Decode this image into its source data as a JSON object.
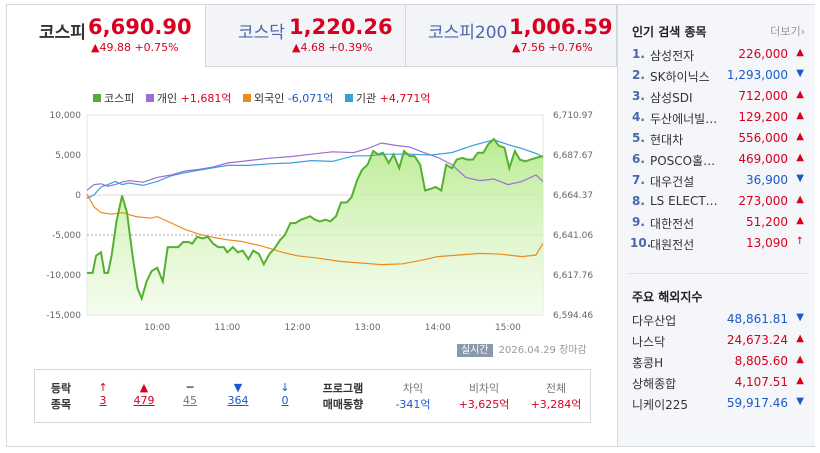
{
  "tabs": [
    {
      "name": "코스피",
      "value": "6,690.90",
      "change": "▲49.88 +0.75%",
      "active": true
    },
    {
      "name": "코스닥",
      "value": "1,220.26",
      "change": "▲4.68 +0.39%",
      "active": false
    },
    {
      "name": "코스피200",
      "value": "1,006.59",
      "change": "▲7.56 +0.76%",
      "active": false
    }
  ],
  "legend": [
    {
      "label": "코스피",
      "value": "",
      "color": "#55b030"
    },
    {
      "label": "개인",
      "value": "+1,681억",
      "color": "#9b6fd0"
    },
    {
      "label": "외국인",
      "value": "-6,071억",
      "color": "#ef8a1c"
    },
    {
      "label": "기관",
      "value": "+4,771억",
      "color": "#3b9ee0"
    }
  ],
  "chart_data": {
    "type": "line",
    "left_axis_ticks": [
      "10,000",
      "5,000",
      "0",
      "-5,000",
      "-10,000",
      "-15,000"
    ],
    "right_axis_ticks": [
      "6,710.97",
      "6,687.67",
      "6,664.37",
      "6,641.06",
      "6,617.76",
      "6,594.46"
    ],
    "x_ticks": [
      "10:00",
      "11:00",
      "12:00",
      "13:00",
      "14:00",
      "15:00"
    ],
    "ylim_left": [
      -15000,
      10000
    ],
    "ylim_right": [
      6594.46,
      6710.97
    ],
    "xlim": [
      9.0,
      15.5
    ],
    "series": [
      {
        "name": "코스피",
        "axis": "right",
        "color": "#55b030",
        "x": [
          9.0,
          9.08,
          9.13,
          9.2,
          9.25,
          9.3,
          9.35,
          9.42,
          9.5,
          9.57,
          9.65,
          9.72,
          9.78,
          9.85,
          9.92,
          10.0,
          10.08,
          10.15,
          10.22,
          10.3,
          10.37,
          10.45,
          10.5,
          10.57,
          10.65,
          10.72,
          10.8,
          10.87,
          10.95,
          11.0,
          11.08,
          11.15,
          11.22,
          11.3,
          11.37,
          11.45,
          11.52,
          11.6,
          11.67,
          11.75,
          11.82,
          11.9,
          11.97,
          12.05,
          12.12,
          12.18,
          12.25,
          12.32,
          12.4,
          12.47,
          12.55,
          12.62,
          12.7,
          12.77,
          12.85,
          12.92,
          13.0,
          13.08,
          13.15,
          13.22,
          13.3,
          13.37,
          13.45,
          13.52,
          13.6,
          13.67,
          13.75,
          13.82,
          13.9,
          13.97,
          14.05,
          14.12,
          14.2,
          14.27,
          14.35,
          14.42,
          14.5,
          14.57,
          14.65,
          14.72,
          14.8,
          14.87,
          14.95,
          15.02,
          15.1,
          15.17,
          15.25,
          15.32,
          15.4,
          15.5
        ],
        "y": [
          6619,
          6619,
          6629,
          6631,
          6619,
          6619,
          6629,
          6649,
          6664,
          6654,
          6629,
          6610,
          6604,
          6614,
          6620,
          6622,
          6614,
          6634,
          6634,
          6634,
          6637,
          6637,
          6636,
          6640,
          6639,
          6640,
          6636,
          6634,
          6634,
          6631,
          6634,
          6631,
          6632,
          6627,
          6632,
          6630,
          6624,
          6630,
          6633,
          6638,
          6641,
          6648,
          6648,
          6650,
          6651,
          6652,
          6650,
          6649,
          6650,
          6649,
          6652,
          6660,
          6660,
          6663,
          6673,
          6679,
          6682,
          6690,
          6688,
          6689,
          6683,
          6688,
          6680,
          6690,
          6687,
          6687,
          6682,
          6667,
          6668,
          6669,
          6667,
          6682,
          6680,
          6685,
          6686,
          6685,
          6685,
          6689,
          6689,
          6694,
          6697,
          6693,
          6692,
          6680,
          6690,
          6685,
          6684,
          6685,
          6686,
          6687
        ]
      },
      {
        "name": "개인",
        "axis": "left",
        "color": "#9b6fd0",
        "x": [
          9.0,
          9.1,
          9.2,
          9.3,
          9.4,
          9.5,
          9.6,
          9.8,
          10.0,
          10.2,
          10.4,
          10.6,
          10.8,
          11.0,
          11.3,
          11.6,
          11.9,
          12.2,
          12.5,
          12.8,
          13.0,
          13.2,
          13.4,
          13.6,
          13.8,
          14.0,
          14.2,
          14.4,
          14.6,
          14.8,
          15.0,
          15.2,
          15.4,
          15.5
        ],
        "y": [
          600,
          1300,
          1400,
          1100,
          1300,
          1600,
          1800,
          1600,
          2200,
          2500,
          3000,
          3200,
          3500,
          4000,
          4300,
          4600,
          4800,
          5100,
          5400,
          5300,
          5800,
          6500,
          6200,
          6000,
          5300,
          4700,
          3800,
          2200,
          1800,
          2000,
          1300,
          1700,
          2500,
          1681
        ]
      },
      {
        "name": "외국인",
        "axis": "left",
        "color": "#ef8a1c",
        "x": [
          9.0,
          9.1,
          9.2,
          9.35,
          9.5,
          9.7,
          9.9,
          10.0,
          10.2,
          10.4,
          10.6,
          10.8,
          11.0,
          11.2,
          11.5,
          11.8,
          12.0,
          12.3,
          12.6,
          12.9,
          13.2,
          13.5,
          13.8,
          14.0,
          14.3,
          14.6,
          14.9,
          15.2,
          15.4,
          15.5
        ],
        "y": [
          100,
          -1500,
          -2200,
          -2400,
          -2200,
          -2700,
          -2900,
          -2700,
          -3500,
          -4300,
          -4900,
          -5300,
          -5600,
          -5800,
          -6400,
          -7200,
          -7600,
          -7900,
          -8300,
          -8500,
          -8700,
          -8600,
          -8100,
          -7700,
          -7500,
          -7300,
          -7400,
          -7700,
          -7500,
          -6071
        ]
      },
      {
        "name": "기관",
        "axis": "left",
        "color": "#3b9ee0",
        "x": [
          9.0,
          9.1,
          9.2,
          9.3,
          9.4,
          9.5,
          9.6,
          9.8,
          10.0,
          10.2,
          10.4,
          10.6,
          10.8,
          11.0,
          11.3,
          11.6,
          11.9,
          12.2,
          12.5,
          12.8,
          13.0,
          13.3,
          13.6,
          13.9,
          14.2,
          14.5,
          14.8,
          15.0,
          15.2,
          15.4,
          15.5
        ],
        "y": [
          -400,
          0,
          1000,
          1300,
          1700,
          1300,
          1500,
          1200,
          1700,
          2400,
          2800,
          3100,
          3400,
          3700,
          3700,
          3900,
          4000,
          4300,
          4200,
          4900,
          4900,
          5100,
          5100,
          5000,
          5300,
          6200,
          6900,
          6300,
          5800,
          5200,
          4771
        ]
      }
    ]
  },
  "realtime": {
    "badge": "실시간",
    "date": "2026.04.29",
    "status": "장마감"
  },
  "breadth": {
    "label1": "등락",
    "label2": "종목",
    "items": [
      {
        "icon": "↑",
        "count": "3",
        "tone": "red"
      },
      {
        "icon": "▲",
        "count": "479",
        "tone": "red"
      },
      {
        "icon": "━",
        "count": "45",
        "tone": "gray"
      },
      {
        "icon": "▼",
        "count": "364",
        "tone": "blue"
      },
      {
        "icon": "↓",
        "count": "0",
        "tone": "blue"
      }
    ]
  },
  "program": {
    "label1": "프로그램",
    "label2": "매매동향",
    "cols": [
      {
        "head": "차익",
        "value": "-341억",
        "tone": "blue"
      },
      {
        "head": "비차익",
        "value": "+3,625억",
        "tone": "red"
      },
      {
        "head": "전체",
        "value": "+3,284억",
        "tone": "red"
      }
    ]
  },
  "popular": {
    "title": "인기 검색 종목",
    "more": "더보기",
    "items": [
      {
        "rank": "1.",
        "name": "삼성전자",
        "price": "226,000",
        "arrow": "▲",
        "tone": "red"
      },
      {
        "rank": "2.",
        "name": "SK하이닉스",
        "price": "1,293,000",
        "arrow": "▼",
        "tone": "blue"
      },
      {
        "rank": "3.",
        "name": "삼성SDI",
        "price": "712,000",
        "arrow": "▲",
        "tone": "red"
      },
      {
        "rank": "4.",
        "name": "두산에너빌…",
        "price": "129,200",
        "arrow": "▲",
        "tone": "red"
      },
      {
        "rank": "5.",
        "name": "현대차",
        "price": "556,000",
        "arrow": "▲",
        "tone": "red"
      },
      {
        "rank": "6.",
        "name": "POSCO홀…",
        "price": "469,000",
        "arrow": "▲",
        "tone": "red"
      },
      {
        "rank": "7.",
        "name": "대우건설",
        "price": "36,900",
        "arrow": "▼",
        "tone": "blue"
      },
      {
        "rank": "8.",
        "name": "LS ELECT…",
        "price": "273,000",
        "arrow": "▲",
        "tone": "red"
      },
      {
        "rank": "9.",
        "name": "대한전선",
        "price": "51,200",
        "arrow": "▲",
        "tone": "red"
      },
      {
        "rank": "10.",
        "name": "대원전선",
        "price": "13,090",
        "arrow": "↑",
        "tone": "red"
      }
    ]
  },
  "world": {
    "title": "주요 해외지수",
    "items": [
      {
        "name": "다우산업",
        "price": "48,861.81",
        "arrow": "▼",
        "tone": "blue"
      },
      {
        "name": "나스닥",
        "price": "24,673.24",
        "arrow": "▲",
        "tone": "red"
      },
      {
        "name": "홍콩H",
        "price": "8,805.60",
        "arrow": "▲",
        "tone": "red"
      },
      {
        "name": "상해종합",
        "price": "4,107.51",
        "arrow": "▲",
        "tone": "red"
      },
      {
        "name": "니케이225",
        "price": "59,917.46",
        "arrow": "▼",
        "tone": "blue"
      }
    ]
  }
}
